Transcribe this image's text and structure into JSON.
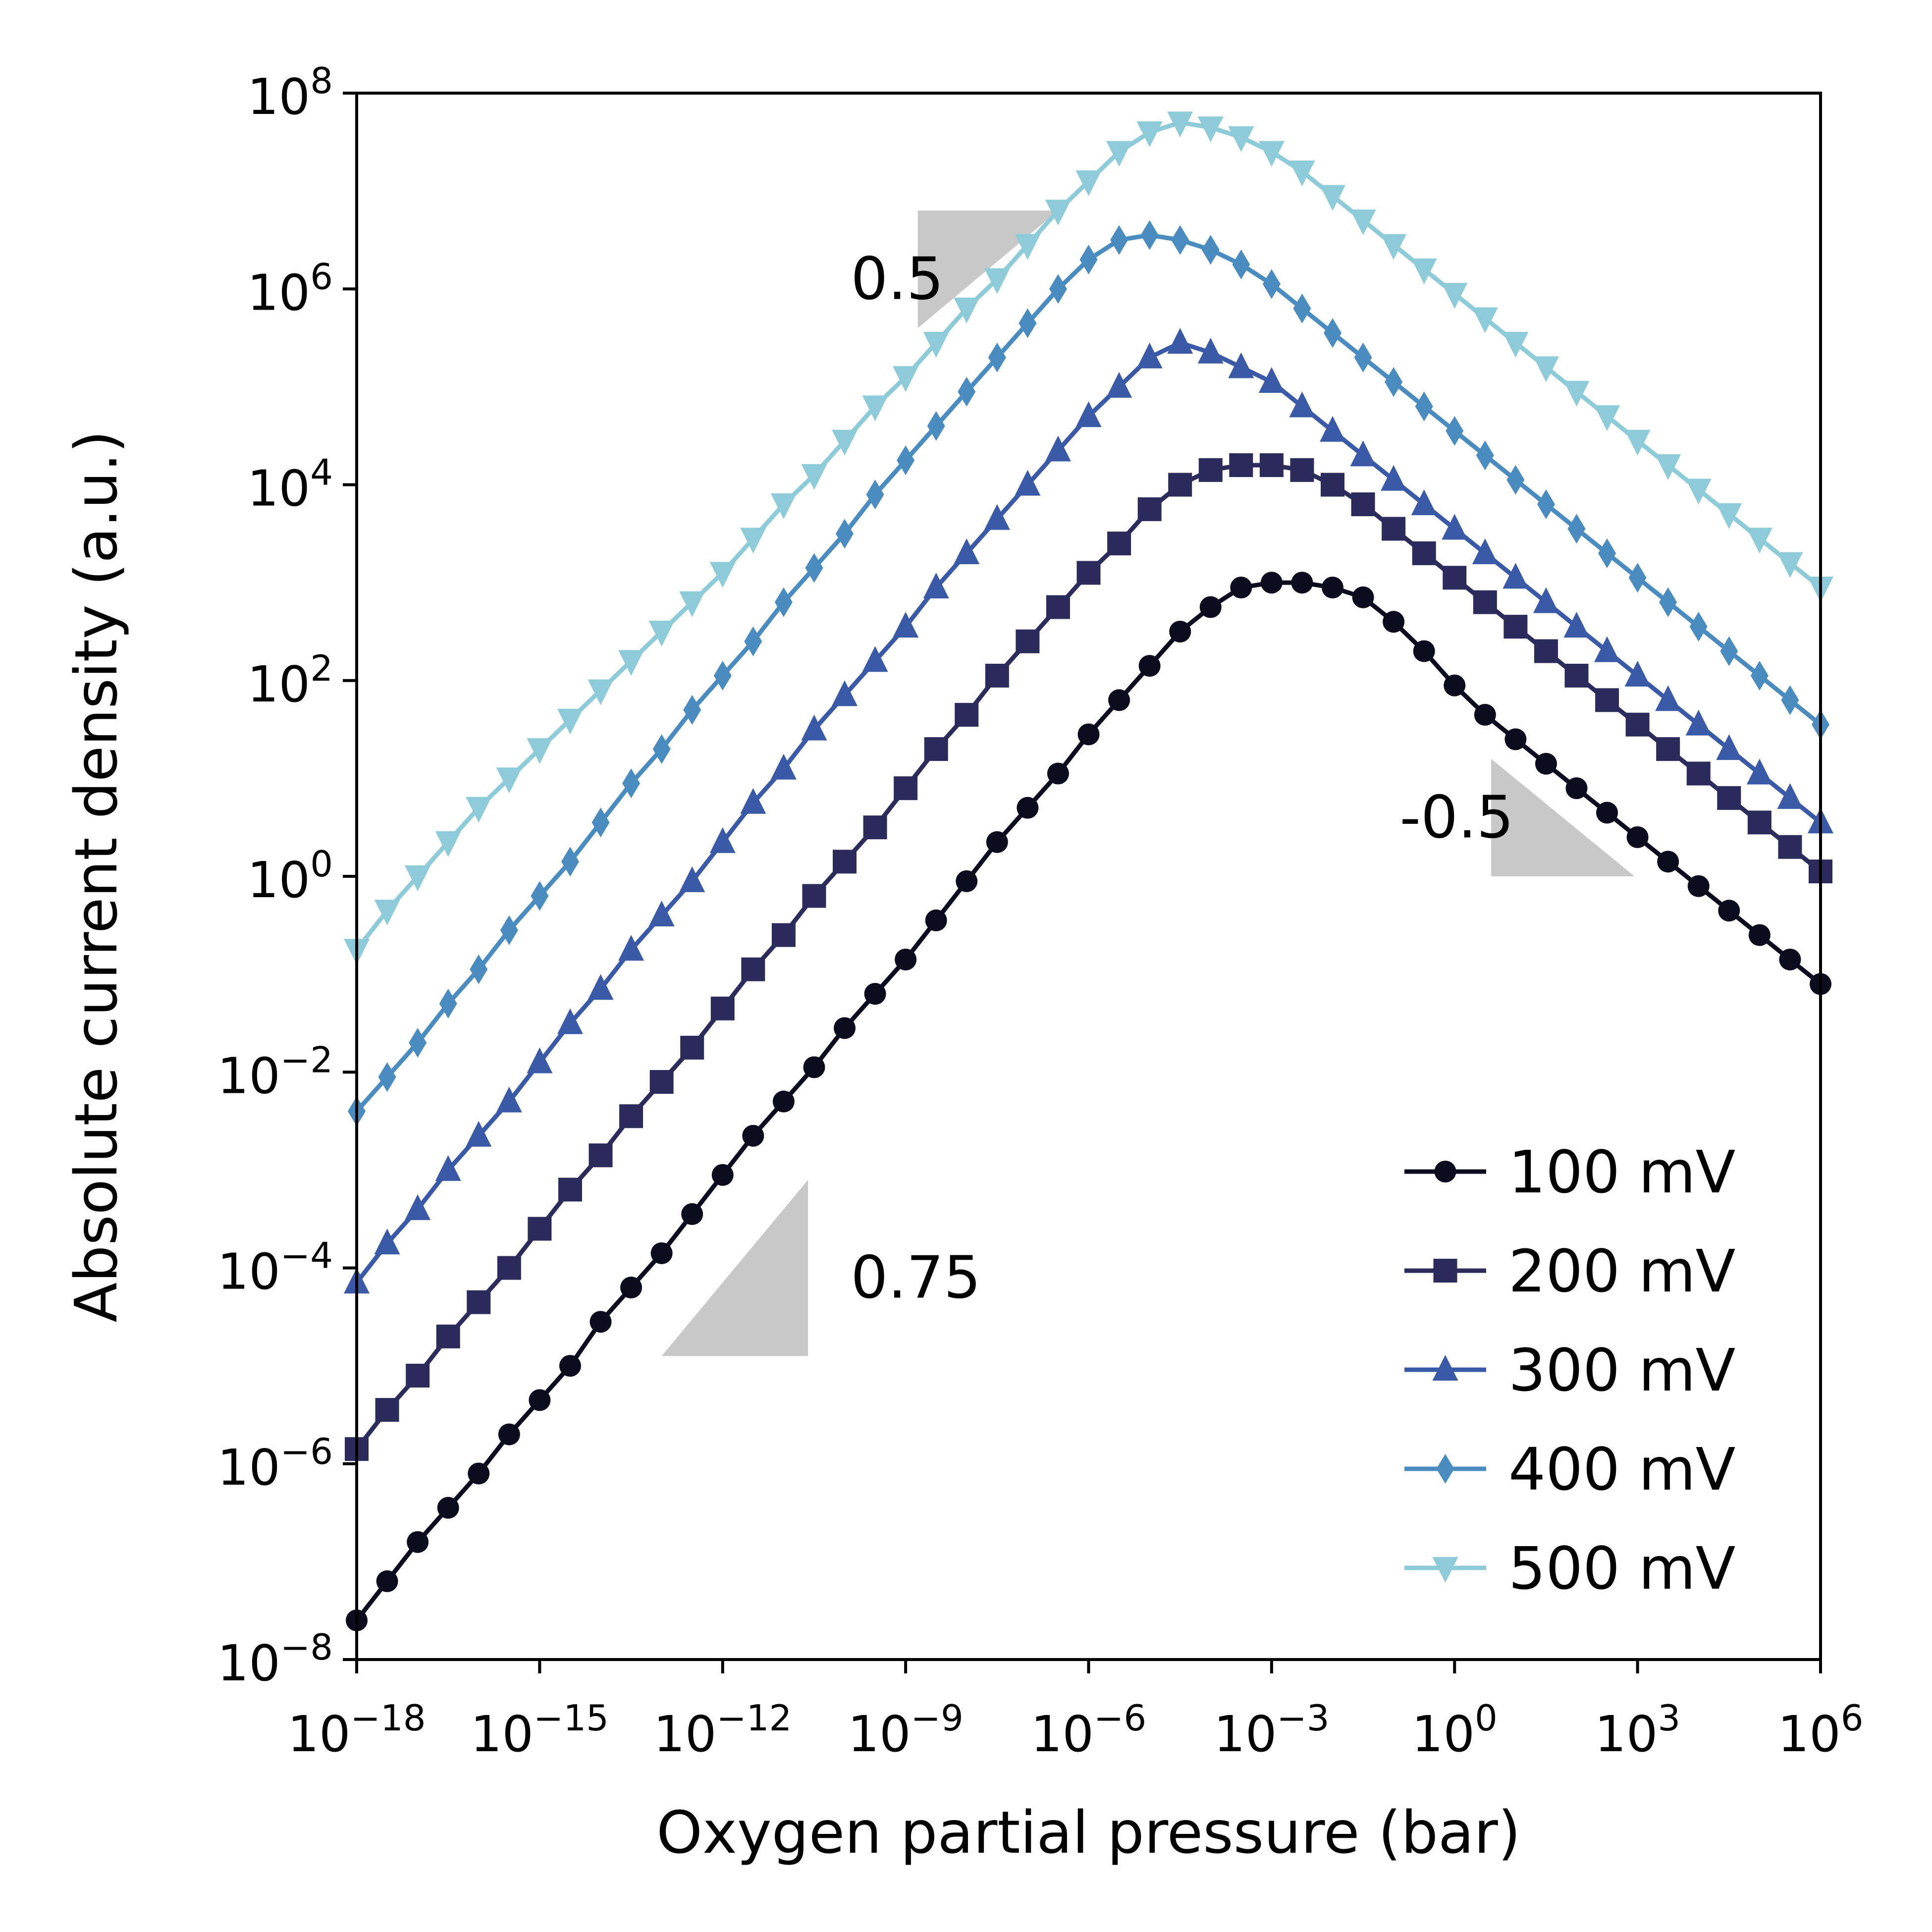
{
  "chart_data": {
    "type": "line",
    "title": "",
    "xlabel": "Oxygen partial pressure (bar)",
    "ylabel": "Absolute current density (a.u.)",
    "xscale": "log",
    "yscale": "log",
    "xlim": [
      1e-18,
      1000000.0
    ],
    "ylim": [
      1e-08,
      100000000.0
    ],
    "x_ticks": [
      {
        "value": 1e-18,
        "base": "10",
        "exp": "−18"
      },
      {
        "value": 1e-15,
        "base": "10",
        "exp": "−15"
      },
      {
        "value": 1e-12,
        "base": "10",
        "exp": "−12"
      },
      {
        "value": 1e-09,
        "base": "10",
        "exp": "−9"
      },
      {
        "value": 1e-06,
        "base": "10",
        "exp": "−6"
      },
      {
        "value": 0.001,
        "base": "10",
        "exp": "−3"
      },
      {
        "value": 1,
        "base": "10",
        "exp": "0"
      },
      {
        "value": 1000.0,
        "base": "10",
        "exp": "3"
      },
      {
        "value": 1000000.0,
        "base": "10",
        "exp": "6"
      }
    ],
    "y_ticks": [
      {
        "value": 1e-08,
        "base": "10",
        "exp": "−8"
      },
      {
        "value": 1e-06,
        "base": "10",
        "exp": "−6"
      },
      {
        "value": 0.0001,
        "base": "10",
        "exp": "−4"
      },
      {
        "value": 0.01,
        "base": "10",
        "exp": "−2"
      },
      {
        "value": 1,
        "base": "10",
        "exp": "0"
      },
      {
        "value": 100.0,
        "base": "10",
        "exp": "2"
      },
      {
        "value": 10000.0,
        "base": "10",
        "exp": "4"
      },
      {
        "value": 1000000.0,
        "base": "10",
        "exp": "6"
      },
      {
        "value": 100000000.0,
        "base": "10",
        "exp": "8"
      }
    ],
    "grid": false,
    "legend_position": "lower-right",
    "x_log10": [
      -18,
      -17.5,
      -17,
      -16.5,
      -16,
      -15.5,
      -15,
      -14.5,
      -14,
      -13.5,
      -13,
      -12.5,
      -12,
      -11.5,
      -11,
      -10.5,
      -10,
      -9.5,
      -9,
      -8.5,
      -8,
      -7.5,
      -7,
      -6.5,
      -6,
      -5.5,
      -5,
      -4.5,
      -4,
      -3.5,
      -3,
      -2.5,
      -2,
      -1.5,
      -1,
      -0.5,
      0,
      0.5,
      1,
      1.5,
      2,
      2.5,
      3,
      3.5,
      4,
      4.5,
      5,
      5.5,
      6
    ],
    "series": [
      {
        "name": "100 mV",
        "color": "#0c0c1e",
        "marker": "circle",
        "log10_values": [
          -7.6,
          -7.2,
          -6.8,
          -6.45,
          -6.1,
          -5.7,
          -5.35,
          -5.0,
          -4.55,
          -4.2,
          -3.85,
          -3.45,
          -3.05,
          -2.65,
          -2.3,
          -1.95,
          -1.55,
          -1.2,
          -0.85,
          -0.45,
          -0.05,
          0.35,
          0.7,
          1.05,
          1.45,
          1.8,
          2.15,
          2.5,
          2.75,
          2.95,
          3.0,
          3.0,
          2.95,
          2.85,
          2.6,
          2.3,
          1.95,
          1.65,
          1.4,
          1.15,
          0.9,
          0.65,
          0.4,
          0.15,
          -0.1,
          -0.35,
          -0.6,
          -0.85,
          -1.1
        ]
      },
      {
        "name": "200 mV",
        "color": "#2b2c5c",
        "marker": "square",
        "log10_values": [
          -5.85,
          -5.45,
          -5.1,
          -4.7,
          -4.35,
          -4.0,
          -3.6,
          -3.2,
          -2.85,
          -2.45,
          -2.1,
          -1.75,
          -1.35,
          -0.95,
          -0.6,
          -0.2,
          0.15,
          0.5,
          0.9,
          1.3,
          1.65,
          2.05,
          2.4,
          2.75,
          3.1,
          3.4,
          3.75,
          4.0,
          4.15,
          4.2,
          4.2,
          4.15,
          4.0,
          3.8,
          3.55,
          3.3,
          3.05,
          2.8,
          2.55,
          2.3,
          2.05,
          1.8,
          1.55,
          1.3,
          1.05,
          0.8,
          0.55,
          0.3,
          0.05
        ]
      },
      {
        "name": "300 mV",
        "color": "#3a5aa8",
        "marker": "triangle-up",
        "log10_values": [
          -4.15,
          -3.75,
          -3.4,
          -3.0,
          -2.65,
          -2.3,
          -1.9,
          -1.5,
          -1.15,
          -0.75,
          -0.4,
          -0.05,
          0.35,
          0.75,
          1.1,
          1.5,
          1.85,
          2.2,
          2.55,
          2.95,
          3.3,
          3.65,
          4.0,
          4.35,
          4.7,
          5.0,
          5.3,
          5.45,
          5.35,
          5.2,
          5.05,
          4.8,
          4.55,
          4.3,
          4.05,
          3.8,
          3.55,
          3.3,
          3.05,
          2.8,
          2.55,
          2.3,
          2.05,
          1.8,
          1.55,
          1.3,
          1.05,
          0.8,
          0.55
        ]
      },
      {
        "name": "400 mV",
        "color": "#4a8cc0",
        "marker": "diamond",
        "log10_values": [
          -2.4,
          -2.05,
          -1.7,
          -1.3,
          -0.95,
          -0.55,
          -0.2,
          0.15,
          0.55,
          0.95,
          1.3,
          1.7,
          2.05,
          2.4,
          2.8,
          3.15,
          3.5,
          3.9,
          4.25,
          4.6,
          4.95,
          5.3,
          5.65,
          6.0,
          6.3,
          6.5,
          6.55,
          6.5,
          6.4,
          6.25,
          6.05,
          5.8,
          5.55,
          5.3,
          5.05,
          4.8,
          4.55,
          4.3,
          4.05,
          3.8,
          3.55,
          3.3,
          3.05,
          2.8,
          2.55,
          2.3,
          2.05,
          1.8,
          1.55
        ]
      },
      {
        "name": "500 mV",
        "color": "#8ecbd8",
        "marker": "triangle-down",
        "log10_values": [
          -0.75,
          -0.35,
          0.0,
          0.35,
          0.7,
          1.0,
          1.3,
          1.6,
          1.9,
          2.2,
          2.5,
          2.8,
          3.1,
          3.45,
          3.8,
          4.1,
          4.45,
          4.8,
          5.1,
          5.45,
          5.8,
          6.1,
          6.45,
          6.8,
          7.1,
          7.4,
          7.6,
          7.7,
          7.65,
          7.55,
          7.4,
          7.2,
          6.95,
          6.7,
          6.45,
          6.2,
          5.95,
          5.7,
          5.45,
          5.2,
          4.95,
          4.7,
          4.45,
          4.2,
          3.95,
          3.7,
          3.45,
          3.2,
          2.95
        ]
      }
    ],
    "annotations": [
      {
        "text": "0.5",
        "triangle_log10": [
          [
            -8.8,
            6.8
          ],
          [
            -6.5,
            6.8
          ],
          [
            -8.8,
            5.6
          ]
        ],
        "label_log10": [
          -9.9,
          6.1
        ]
      },
      {
        "text": "-0.5",
        "triangle_log10": [
          [
            0.6,
            1.2
          ],
          [
            2.95,
            0.0
          ],
          [
            0.6,
            0.0
          ]
        ],
        "label_log10": [
          -0.9,
          0.6
        ]
      },
      {
        "text": "0.75",
        "triangle_log10": [
          [
            -13.0,
            -4.9
          ],
          [
            -10.6,
            -4.9
          ],
          [
            -10.6,
            -3.1
          ]
        ],
        "label_log10": [
          -9.9,
          -4.1
        ]
      }
    ]
  }
}
